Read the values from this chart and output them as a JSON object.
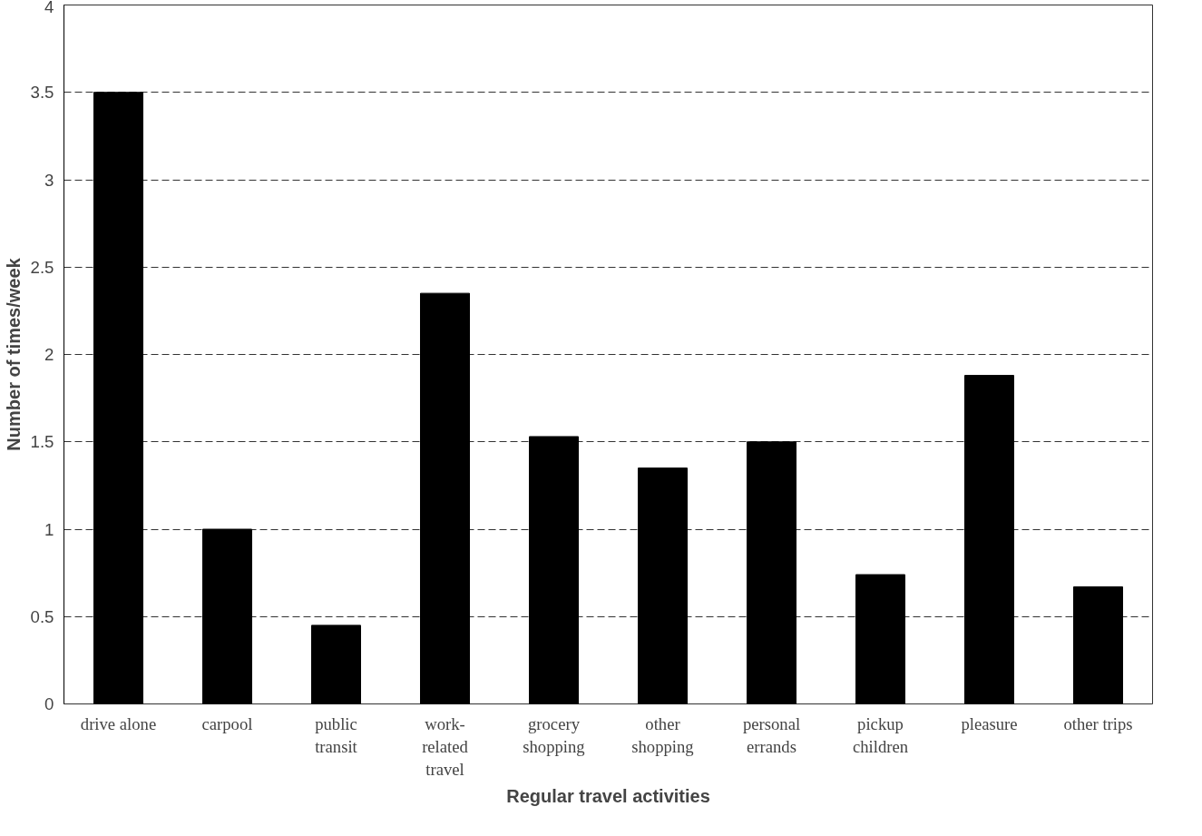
{
  "chart_data": {
    "type": "bar",
    "xlabel": "Regular travel activities",
    "ylabel": "Number of times/week",
    "categories": [
      "drive alone",
      "carpool",
      "public\ntransit",
      "work-\nrelated\ntravel",
      "grocery\nshopping",
      "other\nshopping",
      "personal\nerrands",
      "pickup\nchildren",
      "pleasure",
      "other trips"
    ],
    "values": [
      3.5,
      1.0,
      0.45,
      2.35,
      1.53,
      1.35,
      1.5,
      0.74,
      1.88,
      0.67
    ],
    "color": "#000000",
    "ylim": [
      0,
      4
    ],
    "yticks": [
      0,
      0.5,
      1,
      1.5,
      2,
      2.5,
      3,
      3.5,
      4
    ],
    "grid": "y"
  }
}
